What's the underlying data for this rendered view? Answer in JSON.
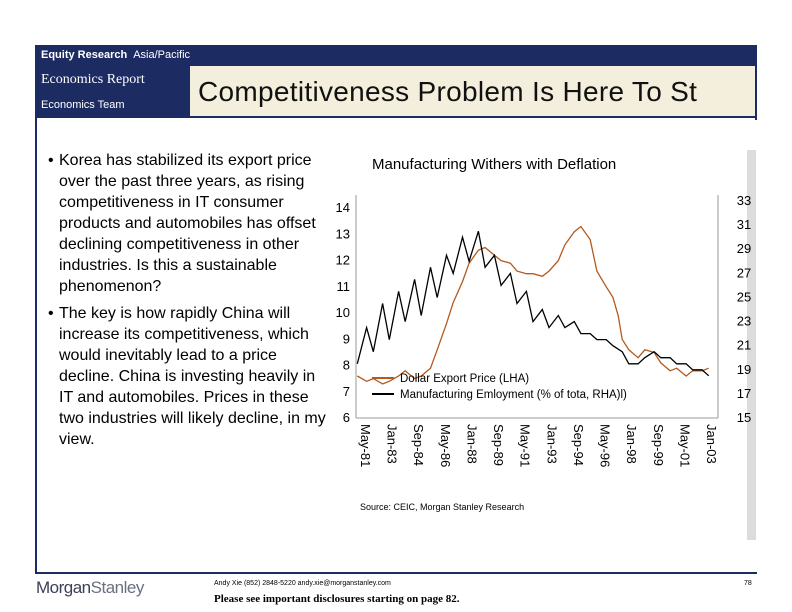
{
  "header": {
    "equity_research": "Equity Research",
    "region": "Asia/Pacific",
    "report_type": "Economics Report",
    "team": "Economics Team",
    "title": "Competitiveness Problem Is Here To St"
  },
  "bullets": [
    "Korea has stabilized its export price over the past three years, as rising competitiveness in IT consumer products and automobiles has offset declining competitiveness in other industries.  Is this a sustainable phenomenon?",
    "The key is how rapidly China will increase its competitiveness, which would inevitably lead to a price decline.  China is investing heavily in IT and automobiles. Prices in these two industries will likely decline, in my view."
  ],
  "chart_data": {
    "type": "line",
    "title": "Manufacturing Withers with Deflation",
    "x_ticks": [
      "May-81",
      "Jan-83",
      "Sep-84",
      "May-86",
      "Jan-88",
      "Sep-89",
      "May-91",
      "Jan-93",
      "Sep-94",
      "May-96",
      "Jan-98",
      "Sep-99",
      "May-01",
      "Jan-03"
    ],
    "xlim": [
      "May-81",
      "Jan-04"
    ],
    "y_left": {
      "ticks": [
        6,
        7,
        8,
        9,
        10,
        11,
        12,
        13,
        14
      ],
      "ylim": [
        6,
        14.5
      ]
    },
    "y_right": {
      "ticks": [
        15,
        17,
        19,
        21,
        23,
        25,
        27,
        29,
        31,
        33
      ],
      "ylim": [
        15,
        33.5
      ]
    },
    "legend_position": "lower-left",
    "grid": false,
    "series": [
      {
        "name": "Dollar Export Price (LHA)",
        "axis": "left",
        "color": "#b35a1f",
        "x": [
          "Jun-81",
          "Jan-82",
          "Jun-82",
          "Jan-83",
          "Jun-83",
          "Jan-84",
          "Jun-84",
          "Jan-85",
          "Jun-85",
          "Jan-86",
          "Jun-86",
          "Jan-87",
          "Jun-87",
          "Jan-88",
          "Jun-88",
          "Jan-89",
          "Jun-89",
          "Jan-90",
          "Jun-90",
          "Jan-91",
          "Jun-91",
          "Jan-92",
          "Jun-92",
          "Jan-93",
          "Jun-93",
          "Jan-94",
          "Jun-94",
          "Jan-95",
          "Jun-95",
          "Jan-96",
          "Jun-96",
          "Jan-97",
          "Jun-97",
          "Oct-97",
          "Jan-98",
          "Jun-98",
          "Jan-99",
          "Jun-99",
          "Jan-00",
          "Jun-00",
          "Jan-01",
          "Jun-01",
          "Jan-02",
          "Jun-02",
          "Jan-03",
          "Jun-03"
        ],
        "y": [
          7.6,
          7.4,
          7.5,
          7.3,
          7.4,
          7.6,
          7.8,
          7.5,
          7.6,
          7.9,
          8.6,
          9.6,
          10.4,
          11.2,
          11.9,
          12.4,
          12.5,
          12.2,
          12.0,
          11.9,
          11.6,
          11.5,
          11.5,
          11.4,
          11.6,
          12.0,
          12.6,
          13.1,
          13.3,
          12.8,
          11.6,
          11.0,
          10.6,
          9.9,
          9.0,
          8.6,
          8.3,
          8.6,
          8.5,
          8.1,
          7.8,
          7.9,
          7.6,
          7.8,
          7.8,
          7.9
        ]
      },
      {
        "name": "Manufacturing Emloyment (% of tota, RHA)l)",
        "axis": "right",
        "color": "#000000",
        "x": [
          "Jun-81",
          "Jan-82",
          "Jun-82",
          "Jan-83",
          "Jun-83",
          "Jan-84",
          "Jun-84",
          "Jan-85",
          "Jun-85",
          "Jan-86",
          "Jun-86",
          "Jan-87",
          "Jun-87",
          "Jan-88",
          "Jun-88",
          "Jan-89",
          "Jun-89",
          "Jan-90",
          "Jun-90",
          "Jan-91",
          "Jun-91",
          "Jan-92",
          "Jun-92",
          "Jan-93",
          "Jun-93",
          "Jan-94",
          "Jun-94",
          "Jan-95",
          "Jun-95",
          "Jan-96",
          "Jun-96",
          "Jan-97",
          "Jun-97",
          "Jan-98",
          "Jun-98",
          "Jan-99",
          "Jun-99",
          "Jan-00",
          "Jun-00",
          "Jan-01",
          "Jun-01",
          "Jan-02",
          "Jun-02",
          "Jan-03",
          "Jun-03"
        ],
        "y": [
          19.5,
          22.5,
          20.5,
          24.5,
          21.5,
          25.5,
          23.0,
          26.5,
          23.5,
          27.5,
          25.0,
          28.5,
          27.0,
          30.0,
          28.0,
          30.5,
          27.5,
          28.5,
          26.0,
          27.0,
          24.5,
          25.5,
          23.0,
          24.0,
          22.5,
          23.5,
          22.5,
          23.0,
          22.0,
          22.0,
          21.5,
          21.5,
          21.0,
          20.5,
          19.5,
          19.5,
          20.0,
          20.5,
          20.0,
          20.0,
          19.5,
          19.5,
          19.0,
          19.0,
          18.5
        ]
      }
    ]
  },
  "source": "Source: CEIC, Morgan Stanley Research",
  "footer": {
    "contact": "Andy Xie (852) 2848-5220  andy.xie@morganstanley.com",
    "disclosure": "Please see important disclosures starting on page 82.",
    "page": "78",
    "logo_morgan": "Morgan",
    "logo_stanley": "Stanley"
  }
}
